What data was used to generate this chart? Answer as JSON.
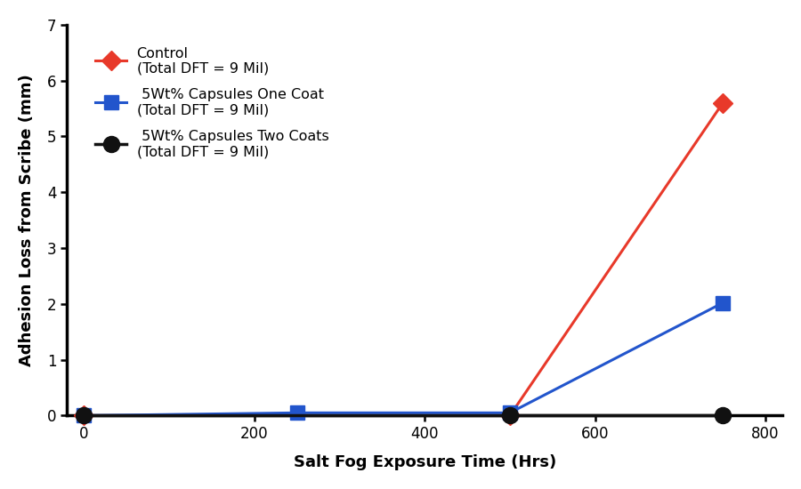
{
  "series": [
    {
      "label_line1": "Control",
      "label_line2": "(Total DFT = 9 Mil)",
      "x": [
        0,
        500,
        750
      ],
      "y": [
        0.0,
        0.0,
        5.6
      ],
      "color": "#e8392a",
      "marker": "D",
      "markersize": 11,
      "linewidth": 2.2,
      "zorder": 3
    },
    {
      "label_line1": " 5Wt% Capsules One Coat",
      "label_line2": "(Total DFT = 9 Mil)",
      "x": [
        0,
        250,
        500,
        750
      ],
      "y": [
        0.0,
        0.05,
        0.05,
        2.02
      ],
      "color": "#2255cc",
      "marker": "s",
      "markersize": 11,
      "linewidth": 2.2,
      "zorder": 3
    },
    {
      "label_line1": " 5Wt% Capsules Two Coats",
      "label_line2": "(Total DFT = 9 Mil)",
      "x": [
        0,
        500,
        750
      ],
      "y": [
        0.0,
        0.0,
        0.0
      ],
      "color": "#111111",
      "marker": "o",
      "markersize": 13,
      "linewidth": 2.5,
      "zorder": 4
    }
  ],
  "xlabel": "Salt Fog Exposure Time (Hrs)",
  "ylabel": "Adhesion Loss from Scribe (mm)",
  "xlim": [
    -20,
    820
  ],
  "ylim": [
    0,
    7
  ],
  "xticks": [
    0,
    200,
    400,
    600,
    800
  ],
  "yticks": [
    0,
    1,
    2,
    3,
    4,
    5,
    6,
    7
  ],
  "background_color": "#ffffff",
  "axis_linewidth": 2.0,
  "label_fontsize": 13,
  "tick_fontsize": 12,
  "legend_fontsize": 11.5
}
